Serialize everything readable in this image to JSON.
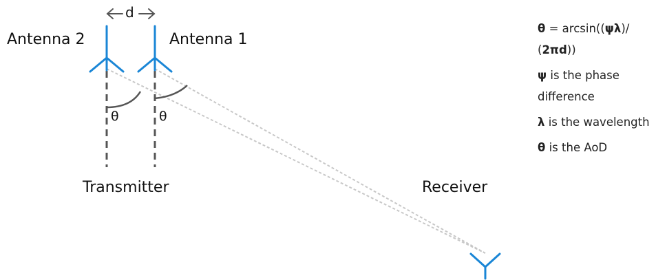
{
  "colors": {
    "antenna": "#1a86d6",
    "baseline": "#555555",
    "ray": "#c8c8c8",
    "arc": "#555555"
  },
  "labels": {
    "antenna_2": "Antenna 2",
    "antenna_1": "Antenna 1",
    "spacing": "d",
    "theta_left": "θ",
    "theta_right": "θ",
    "transmitter": "Transmitter",
    "receiver": "Receiver"
  },
  "legend": {
    "formula": {
      "sym": "θ",
      "eq": " = arcsin((",
      "psi_lambda": "ψλ",
      "mid": ")/ (",
      "two_pi_d": "2πd",
      "end": "))"
    },
    "psi": {
      "sym": "ψ",
      "text": " is the phase difference"
    },
    "lambda": {
      "sym": "λ",
      "text": " is the wavelength"
    },
    "theta": {
      "sym": "θ",
      "text": " is the AoD"
    }
  }
}
